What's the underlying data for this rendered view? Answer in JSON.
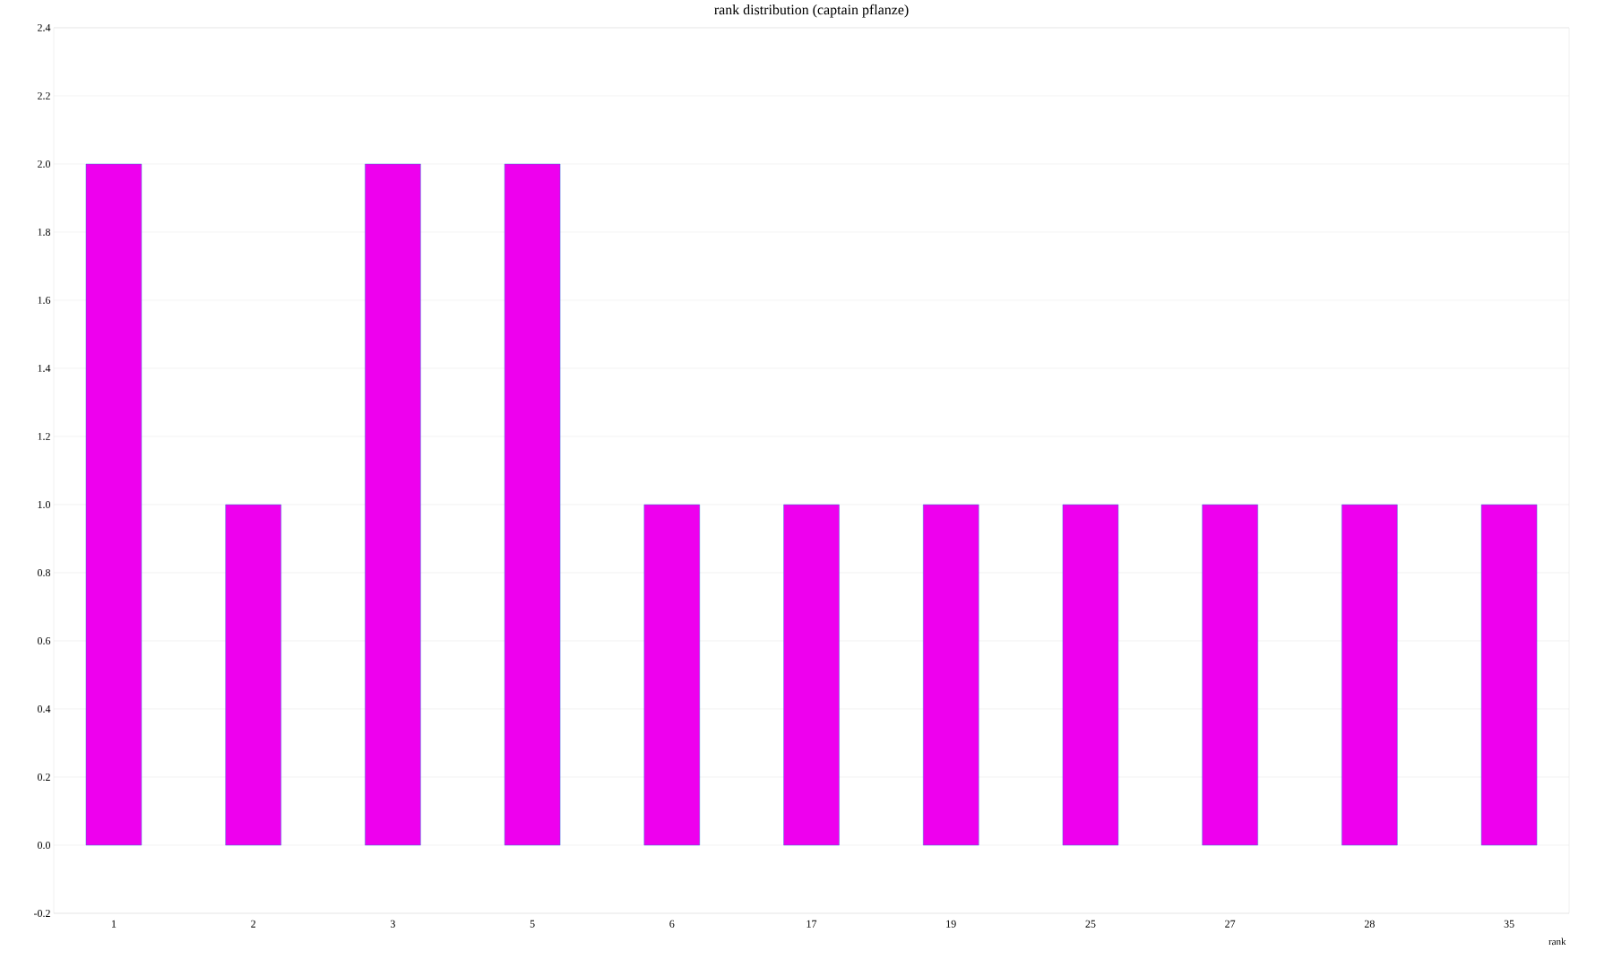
{
  "chart_data": {
    "type": "bar",
    "title": "rank distribution (captain pflanze)",
    "xlabel": "rank",
    "categories": [
      "1",
      "2",
      "3",
      "5",
      "6",
      "17",
      "19",
      "25",
      "27",
      "28",
      "35"
    ],
    "values": [
      2,
      1,
      2,
      2,
      1,
      1,
      1,
      1,
      1,
      1,
      1
    ],
    "color": "#ee00ee",
    "ylim": [
      -0.2,
      2.4
    ],
    "yticks": [
      {
        "value": -0.2,
        "label": "-0.2"
      },
      {
        "value": 0,
        "label": "0.0"
      },
      0.2,
      0.4,
      0.6,
      0.8,
      {
        "value": 1,
        "label": "1.0"
      },
      1.2,
      1.4,
      1.6,
      1.8,
      {
        "value": 2,
        "label": "2.0"
      },
      2.2,
      2.4
    ],
    "grid": "y"
  }
}
